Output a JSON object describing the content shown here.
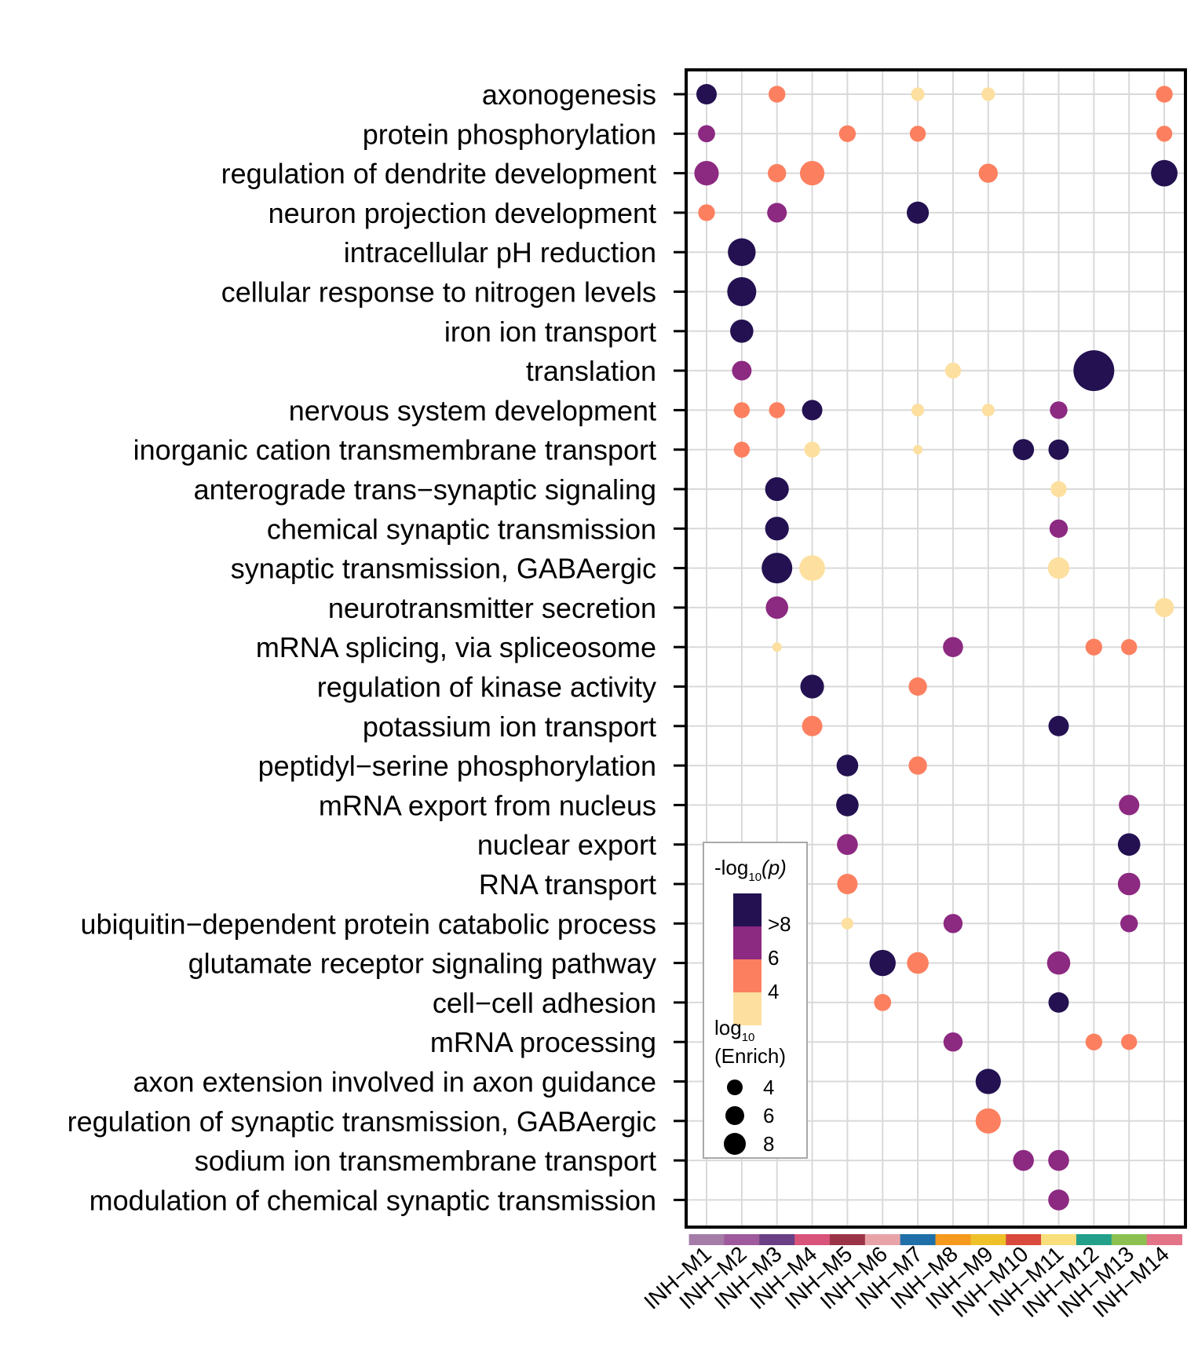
{
  "chart_data": {
    "type": "dotplot",
    "colors": {
      "gt8": "#231151",
      "c6": "#8c2981",
      "c5": "#fc8060",
      "c4": "#fde0a0",
      "grid": "#d9d9d9",
      "frame": "#000000"
    },
    "modules": [
      "INH−M1",
      "INH−M2",
      "INH−M3",
      "INH−M4",
      "INH−M5",
      "INH−M6",
      "INH−M7",
      "INH−M8",
      "INH−M9",
      "INH−M10",
      "INH−M11",
      "INH−M12",
      "INH−M13",
      "INH−M14"
    ],
    "module_colors": [
      "#a57ca8",
      "#9e5a9c",
      "#6a3f85",
      "#d9547a",
      "#9c3448",
      "#e8a3a8",
      "#1f70a8",
      "#f59a1e",
      "#eec02a",
      "#d94a3c",
      "#f8df7c",
      "#23a08a",
      "#8cc151",
      "#e37387"
    ],
    "terms": [
      "axonogenesis",
      "protein phosphorylation",
      "regulation of dendrite development",
      "neuron projection development",
      "intracellular pH reduction",
      "cellular response to nitrogen levels",
      "iron ion transport",
      "translation",
      "nervous system development",
      "inorganic cation transmembrane transport",
      "anterograde trans−synaptic signaling",
      "chemical synaptic transmission",
      "synaptic transmission, GABAergic",
      "neurotransmitter secretion",
      "mRNA splicing, via spliceosome",
      "regulation of kinase activity",
      "potassium ion transport",
      "peptidyl−serine phosphorylation",
      "mRNA export from nucleus",
      "nuclear export",
      "RNA transport",
      "ubiquitin−dependent protein catabolic process",
      "glutamate receptor signaling pathway",
      "cell−cell adhesion",
      "mRNA processing",
      "axon extension involved in axon guidance",
      "regulation of synaptic transmission, GABAergic",
      "sodium ion transmembrane transport",
      "modulation of chemical synaptic transmission"
    ],
    "points": [
      {
        "term": 0,
        "module": 0,
        "neglog10p": 9,
        "log10_enrich": 5.5
      },
      {
        "term": 0,
        "module": 2,
        "neglog10p": 5,
        "log10_enrich": 4.6
      },
      {
        "term": 0,
        "module": 6,
        "neglog10p": 3,
        "log10_enrich": 3.8
      },
      {
        "term": 0,
        "module": 8,
        "neglog10p": 3,
        "log10_enrich": 3.8
      },
      {
        "term": 0,
        "module": 13,
        "neglog10p": 5,
        "log10_enrich": 4.6
      },
      {
        "term": 1,
        "module": 0,
        "neglog10p": 6,
        "log10_enrich": 4.7
      },
      {
        "term": 1,
        "module": 4,
        "neglog10p": 5,
        "log10_enrich": 4.6
      },
      {
        "term": 1,
        "module": 6,
        "neglog10p": 5,
        "log10_enrich": 4.4
      },
      {
        "term": 1,
        "module": 13,
        "neglog10p": 5,
        "log10_enrich": 4.4
      },
      {
        "term": 2,
        "module": 0,
        "neglog10p": 6,
        "log10_enrich": 6.5
      },
      {
        "term": 2,
        "module": 2,
        "neglog10p": 5,
        "log10_enrich": 5.0
      },
      {
        "term": 2,
        "module": 3,
        "neglog10p": 5,
        "log10_enrich": 6.5
      },
      {
        "term": 2,
        "module": 8,
        "neglog10p": 5,
        "log10_enrich": 5.2
      },
      {
        "term": 2,
        "module": 13,
        "neglog10p": 9,
        "log10_enrich": 7.0
      },
      {
        "term": 3,
        "module": 0,
        "neglog10p": 5,
        "log10_enrich": 4.6
      },
      {
        "term": 3,
        "module": 2,
        "neglog10p": 6,
        "log10_enrich": 5.3
      },
      {
        "term": 3,
        "module": 6,
        "neglog10p": 9,
        "log10_enrich": 5.9
      },
      {
        "term": 4,
        "module": 1,
        "neglog10p": 9,
        "log10_enrich": 7.3
      },
      {
        "term": 5,
        "module": 1,
        "neglog10p": 9,
        "log10_enrich": 7.6
      },
      {
        "term": 6,
        "module": 1,
        "neglog10p": 9,
        "log10_enrich": 6.2
      },
      {
        "term": 7,
        "module": 1,
        "neglog10p": 6,
        "log10_enrich": 5.3
      },
      {
        "term": 7,
        "module": 7,
        "neglog10p": 3,
        "log10_enrich": 4.4
      },
      {
        "term": 7,
        "module": 11,
        "neglog10p": 9,
        "log10_enrich": 10.5
      },
      {
        "term": 8,
        "module": 1,
        "neglog10p": 5,
        "log10_enrich": 4.4
      },
      {
        "term": 8,
        "module": 2,
        "neglog10p": 5,
        "log10_enrich": 4.4
      },
      {
        "term": 8,
        "module": 3,
        "neglog10p": 9,
        "log10_enrich": 5.5
      },
      {
        "term": 8,
        "module": 6,
        "neglog10p": 3,
        "log10_enrich": 3.6
      },
      {
        "term": 8,
        "module": 8,
        "neglog10p": 3,
        "log10_enrich": 3.6
      },
      {
        "term": 8,
        "module": 10,
        "neglog10p": 6,
        "log10_enrich": 4.8
      },
      {
        "term": 9,
        "module": 1,
        "neglog10p": 5,
        "log10_enrich": 4.4
      },
      {
        "term": 9,
        "module": 3,
        "neglog10p": 3,
        "log10_enrich": 4.4
      },
      {
        "term": 9,
        "module": 6,
        "neglog10p": 3,
        "log10_enrich": 2.8
      },
      {
        "term": 9,
        "module": 9,
        "neglog10p": 9,
        "log10_enrich": 5.7
      },
      {
        "term": 9,
        "module": 10,
        "neglog10p": 9,
        "log10_enrich": 5.5
      },
      {
        "term": 10,
        "module": 2,
        "neglog10p": 9,
        "log10_enrich": 6.3
      },
      {
        "term": 10,
        "module": 10,
        "neglog10p": 3,
        "log10_enrich": 4.4
      },
      {
        "term": 11,
        "module": 2,
        "neglog10p": 9,
        "log10_enrich": 6.3
      },
      {
        "term": 11,
        "module": 10,
        "neglog10p": 6,
        "log10_enrich": 5.0
      },
      {
        "term": 12,
        "module": 2,
        "neglog10p": 9,
        "log10_enrich": 8.0
      },
      {
        "term": 12,
        "module": 3,
        "neglog10p": 3,
        "log10_enrich": 6.8
      },
      {
        "term": 12,
        "module": 10,
        "neglog10p": 3,
        "log10_enrich": 5.8
      },
      {
        "term": 13,
        "module": 2,
        "neglog10p": 6,
        "log10_enrich": 6.0
      },
      {
        "term": 13,
        "module": 13,
        "neglog10p": 3,
        "log10_enrich": 5.2
      },
      {
        "term": 14,
        "module": 2,
        "neglog10p": 3,
        "log10_enrich": 2.8
      },
      {
        "term": 14,
        "module": 7,
        "neglog10p": 6,
        "log10_enrich": 5.4
      },
      {
        "term": 14,
        "module": 11,
        "neglog10p": 5,
        "log10_enrich": 4.6
      },
      {
        "term": 14,
        "module": 12,
        "neglog10p": 5,
        "log10_enrich": 4.4
      },
      {
        "term": 15,
        "module": 3,
        "neglog10p": 9,
        "log10_enrich": 6.3
      },
      {
        "term": 15,
        "module": 6,
        "neglog10p": 5,
        "log10_enrich": 5.0
      },
      {
        "term": 16,
        "module": 3,
        "neglog10p": 5,
        "log10_enrich": 5.5
      },
      {
        "term": 16,
        "module": 10,
        "neglog10p": 9,
        "log10_enrich": 5.5
      },
      {
        "term": 17,
        "module": 4,
        "neglog10p": 9,
        "log10_enrich": 5.8
      },
      {
        "term": 17,
        "module": 6,
        "neglog10p": 5,
        "log10_enrich": 5.0
      },
      {
        "term": 18,
        "module": 4,
        "neglog10p": 9,
        "log10_enrich": 6.0
      },
      {
        "term": 18,
        "module": 12,
        "neglog10p": 6,
        "log10_enrich": 5.5
      },
      {
        "term": 19,
        "module": 4,
        "neglog10p": 6,
        "log10_enrich": 5.6
      },
      {
        "term": 19,
        "module": 12,
        "neglog10p": 9,
        "log10_enrich": 6.0
      },
      {
        "term": 20,
        "module": 4,
        "neglog10p": 5,
        "log10_enrich": 5.5
      },
      {
        "term": 20,
        "module": 12,
        "neglog10p": 6,
        "log10_enrich": 6.0
      },
      {
        "term": 21,
        "module": 4,
        "neglog10p": 3,
        "log10_enrich": 3.4
      },
      {
        "term": 21,
        "module": 7,
        "neglog10p": 6,
        "log10_enrich": 5.2
      },
      {
        "term": 21,
        "module": 12,
        "neglog10p": 6,
        "log10_enrich": 4.8
      },
      {
        "term": 22,
        "module": 5,
        "neglog10p": 9,
        "log10_enrich": 6.9
      },
      {
        "term": 22,
        "module": 6,
        "neglog10p": 5,
        "log10_enrich": 5.8
      },
      {
        "term": 22,
        "module": 10,
        "neglog10p": 6,
        "log10_enrich": 6.2
      },
      {
        "term": 23,
        "module": 5,
        "neglog10p": 5,
        "log10_enrich": 4.7
      },
      {
        "term": 23,
        "module": 10,
        "neglog10p": 9,
        "log10_enrich": 5.5
      },
      {
        "term": 24,
        "module": 7,
        "neglog10p": 6,
        "log10_enrich": 5.2
      },
      {
        "term": 24,
        "module": 11,
        "neglog10p": 5,
        "log10_enrich": 4.6
      },
      {
        "term": 24,
        "module": 12,
        "neglog10p": 5,
        "log10_enrich": 4.4
      },
      {
        "term": 25,
        "module": 8,
        "neglog10p": 9,
        "log10_enrich": 6.7
      },
      {
        "term": 26,
        "module": 8,
        "neglog10p": 5,
        "log10_enrich": 6.7
      },
      {
        "term": 27,
        "module": 9,
        "neglog10p": 6,
        "log10_enrich": 5.6
      },
      {
        "term": 27,
        "module": 10,
        "neglog10p": 6,
        "log10_enrich": 5.6
      },
      {
        "term": 28,
        "module": 10,
        "neglog10p": 6,
        "log10_enrich": 5.6
      }
    ],
    "legend": {
      "color_title": "-log",
      "color_title_sub": "10",
      "color_title_arg": "(p)",
      "color_labels": [
        ">8",
        "6",
        "4"
      ],
      "size_title_line1": "log",
      "size_title_sub": "10",
      "size_title_line2": "(Enrich)",
      "size_labels": [
        "4",
        "6",
        "8"
      ],
      "size_values": [
        4,
        6,
        8
      ],
      "placement": "bottom-left inside plot"
    }
  }
}
